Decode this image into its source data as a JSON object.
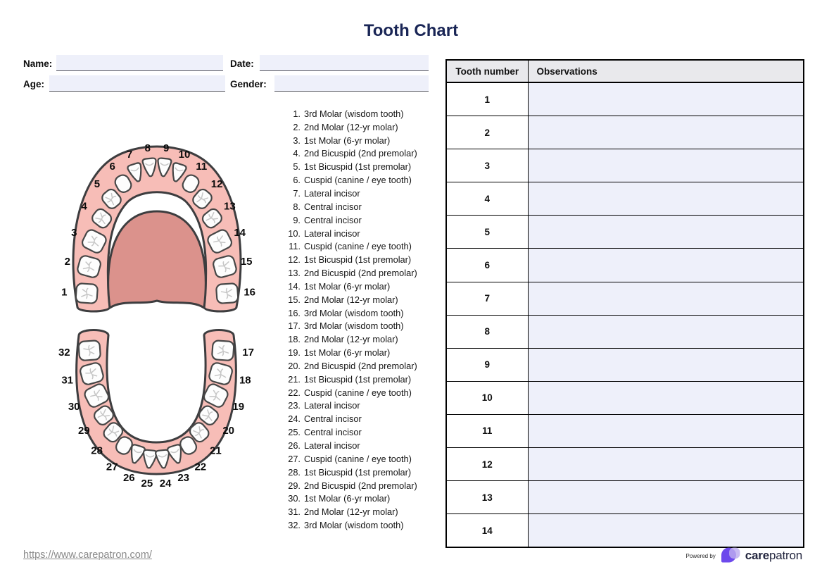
{
  "title": "Tooth Chart",
  "form": {
    "fields": [
      {
        "id": "name",
        "label": "Name:",
        "value": ""
      },
      {
        "id": "date",
        "label": "Date:",
        "value": ""
      },
      {
        "id": "age",
        "label": "Age:",
        "value": ""
      },
      {
        "id": "gender",
        "label": "Gender:",
        "value": ""
      }
    ]
  },
  "tooth_list": [
    {
      "num": "1",
      "name": "3rd Molar (wisdom tooth)"
    },
    {
      "num": "2",
      "name": "2nd Molar (12-yr molar)"
    },
    {
      "num": "3",
      "name": "1st Molar (6-yr molar)"
    },
    {
      "num": "4",
      "name": "2nd Bicuspid (2nd premolar)"
    },
    {
      "num": "5",
      "name": "1st Bicuspid (1st premolar)"
    },
    {
      "num": "6",
      "name": "Cuspid (canine / eye tooth)"
    },
    {
      "num": "7",
      "name": "Lateral incisor"
    },
    {
      "num": "8",
      "name": "Central incisor"
    },
    {
      "num": "9",
      "name": "Central incisor"
    },
    {
      "num": "10",
      "name": "Lateral incisor"
    },
    {
      "num": "11",
      "name": "Cuspid (canine / eye tooth)"
    },
    {
      "num": "12",
      "name": "1st Bicuspid (1st premolar)"
    },
    {
      "num": "13",
      "name": "2nd Bicuspid (2nd premolar)"
    },
    {
      "num": "14",
      "name": "1st Molar (6-yr molar)"
    },
    {
      "num": "15",
      "name": "2nd Molar (12-yr molar)"
    },
    {
      "num": "16",
      "name": "3rd Molar (wisdom tooth)"
    },
    {
      "num": "17",
      "name": "3rd Molar (wisdom tooth)"
    },
    {
      "num": "18",
      "name": "2nd Molar (12-yr molar)"
    },
    {
      "num": "19",
      "name": "1st Molar (6-yr molar)"
    },
    {
      "num": "20",
      "name": "2nd Bicuspid (2nd premolar)"
    },
    {
      "num": "21",
      "name": "1st Bicuspid (1st premolar)"
    },
    {
      "num": "22",
      "name": "Cuspid (canine / eye tooth)"
    },
    {
      "num": "23",
      "name": "Lateral incisor"
    },
    {
      "num": "24",
      "name": "Central incisor"
    },
    {
      "num": "25",
      "name": "Central incisor"
    },
    {
      "num": "26",
      "name": "Lateral incisor"
    },
    {
      "num": "27",
      "name": "Cuspid (canine / eye tooth)"
    },
    {
      "num": "28",
      "name": "1st Bicuspid (1st premolar)"
    },
    {
      "num": "29",
      "name": "2nd Bicuspid (2nd premolar)"
    },
    {
      "num": "30",
      "name": "1st Molar (6-yr molar)"
    },
    {
      "num": "31",
      "name": "2nd Molar (12-yr molar)"
    },
    {
      "num": "32",
      "name": "3rd Molar (wisdom tooth)"
    }
  ],
  "diagram": {
    "upper_teeth": [
      1,
      2,
      3,
      4,
      5,
      6,
      7,
      8,
      9,
      10,
      11,
      12,
      13,
      14,
      15,
      16
    ],
    "lower_teeth": [
      17,
      18,
      19,
      20,
      21,
      22,
      23,
      24,
      25,
      26,
      27,
      28,
      29,
      30,
      31,
      32
    ]
  },
  "table": {
    "headers": [
      "Tooth number",
      "Observations"
    ],
    "rows": [
      {
        "tooth_number": "1",
        "observation": ""
      },
      {
        "tooth_number": "2",
        "observation": ""
      },
      {
        "tooth_number": "3",
        "observation": ""
      },
      {
        "tooth_number": "4",
        "observation": ""
      },
      {
        "tooth_number": "5",
        "observation": ""
      },
      {
        "tooth_number": "6",
        "observation": ""
      },
      {
        "tooth_number": "7",
        "observation": ""
      },
      {
        "tooth_number": "8",
        "observation": ""
      },
      {
        "tooth_number": "9",
        "observation": ""
      },
      {
        "tooth_number": "10",
        "observation": ""
      },
      {
        "tooth_number": "11",
        "observation": ""
      },
      {
        "tooth_number": "12",
        "observation": ""
      },
      {
        "tooth_number": "13",
        "observation": ""
      },
      {
        "tooth_number": "14",
        "observation": ""
      }
    ]
  },
  "footer": {
    "link": "https://www.carepatron.com/",
    "powered_by": "Powered by",
    "brand_bold": "care",
    "brand_light": "patron"
  },
  "colors": {
    "navy": "#1A2656",
    "gum_pink": "#F7BDB7",
    "palate_pink": "#DB928C",
    "field_fill": "#EEF0FA",
    "table_header_bg": "#E9E9EC",
    "brand_purple": "#6D49EC",
    "brand_lavender": "#BCACEF"
  }
}
